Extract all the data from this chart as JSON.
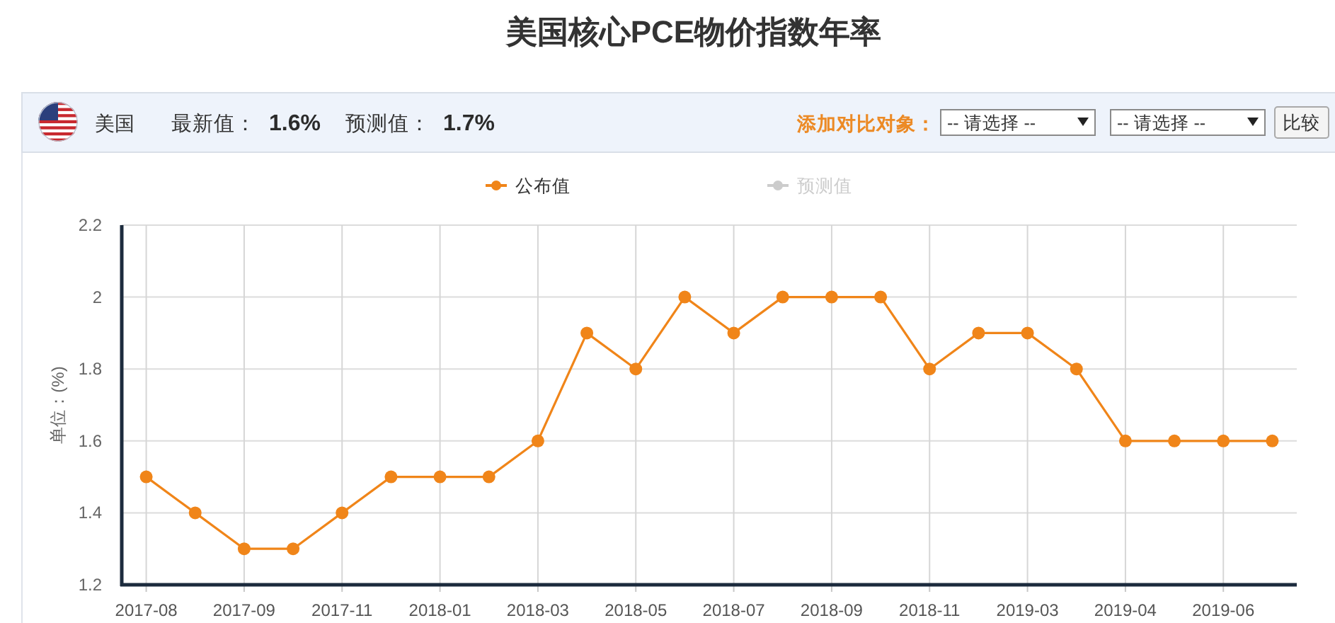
{
  "chart_data": {
    "type": "line",
    "title": "美国核心PCE物价指数年率",
    "ylabel": "单位：(%)",
    "annotations": [
      "美国",
      "最新值：",
      "1.6%",
      "预测值：",
      "1.7%",
      "添加对比对象：",
      "-- 请选择 --",
      "-- 请选择 --",
      "比较"
    ],
    "categories": [
      "2017-08",
      null,
      "2017-09",
      null,
      "2017-11",
      null,
      "2018-01",
      null,
      "2018-03",
      null,
      "2018-05",
      null,
      "2018-07",
      null,
      "2018-09",
      null,
      "2018-11",
      null,
      "2019-03",
      null,
      "2019-04",
      null,
      "2019-06",
      null
    ],
    "series": [
      {
        "name": "公布值",
        "color": "#f08519",
        "values": [
          1.5,
          1.4,
          1.3,
          1.3,
          1.4,
          1.5,
          1.5,
          1.5,
          1.6,
          1.9,
          1.8,
          2.0,
          1.9,
          2.0,
          2.0,
          2.0,
          1.8,
          1.9,
          1.9,
          1.8,
          1.6,
          1.6,
          1.6,
          1.6
        ]
      },
      {
        "name": "预测值",
        "color": "#cccccc",
        "values": [
          null,
          null,
          null,
          null,
          null,
          null,
          null,
          null,
          null,
          null,
          null,
          null,
          null,
          null,
          null,
          null,
          null,
          null,
          null,
          null,
          null,
          null,
          null,
          null
        ]
      }
    ],
    "ylim": [
      1.2,
      2.2
    ],
    "yticks": [
      1.2,
      1.4,
      1.6,
      1.8,
      2,
      2.2
    ],
    "grid": true,
    "legend": "top",
    "marker": "circle",
    "line_style": "solid"
  }
}
